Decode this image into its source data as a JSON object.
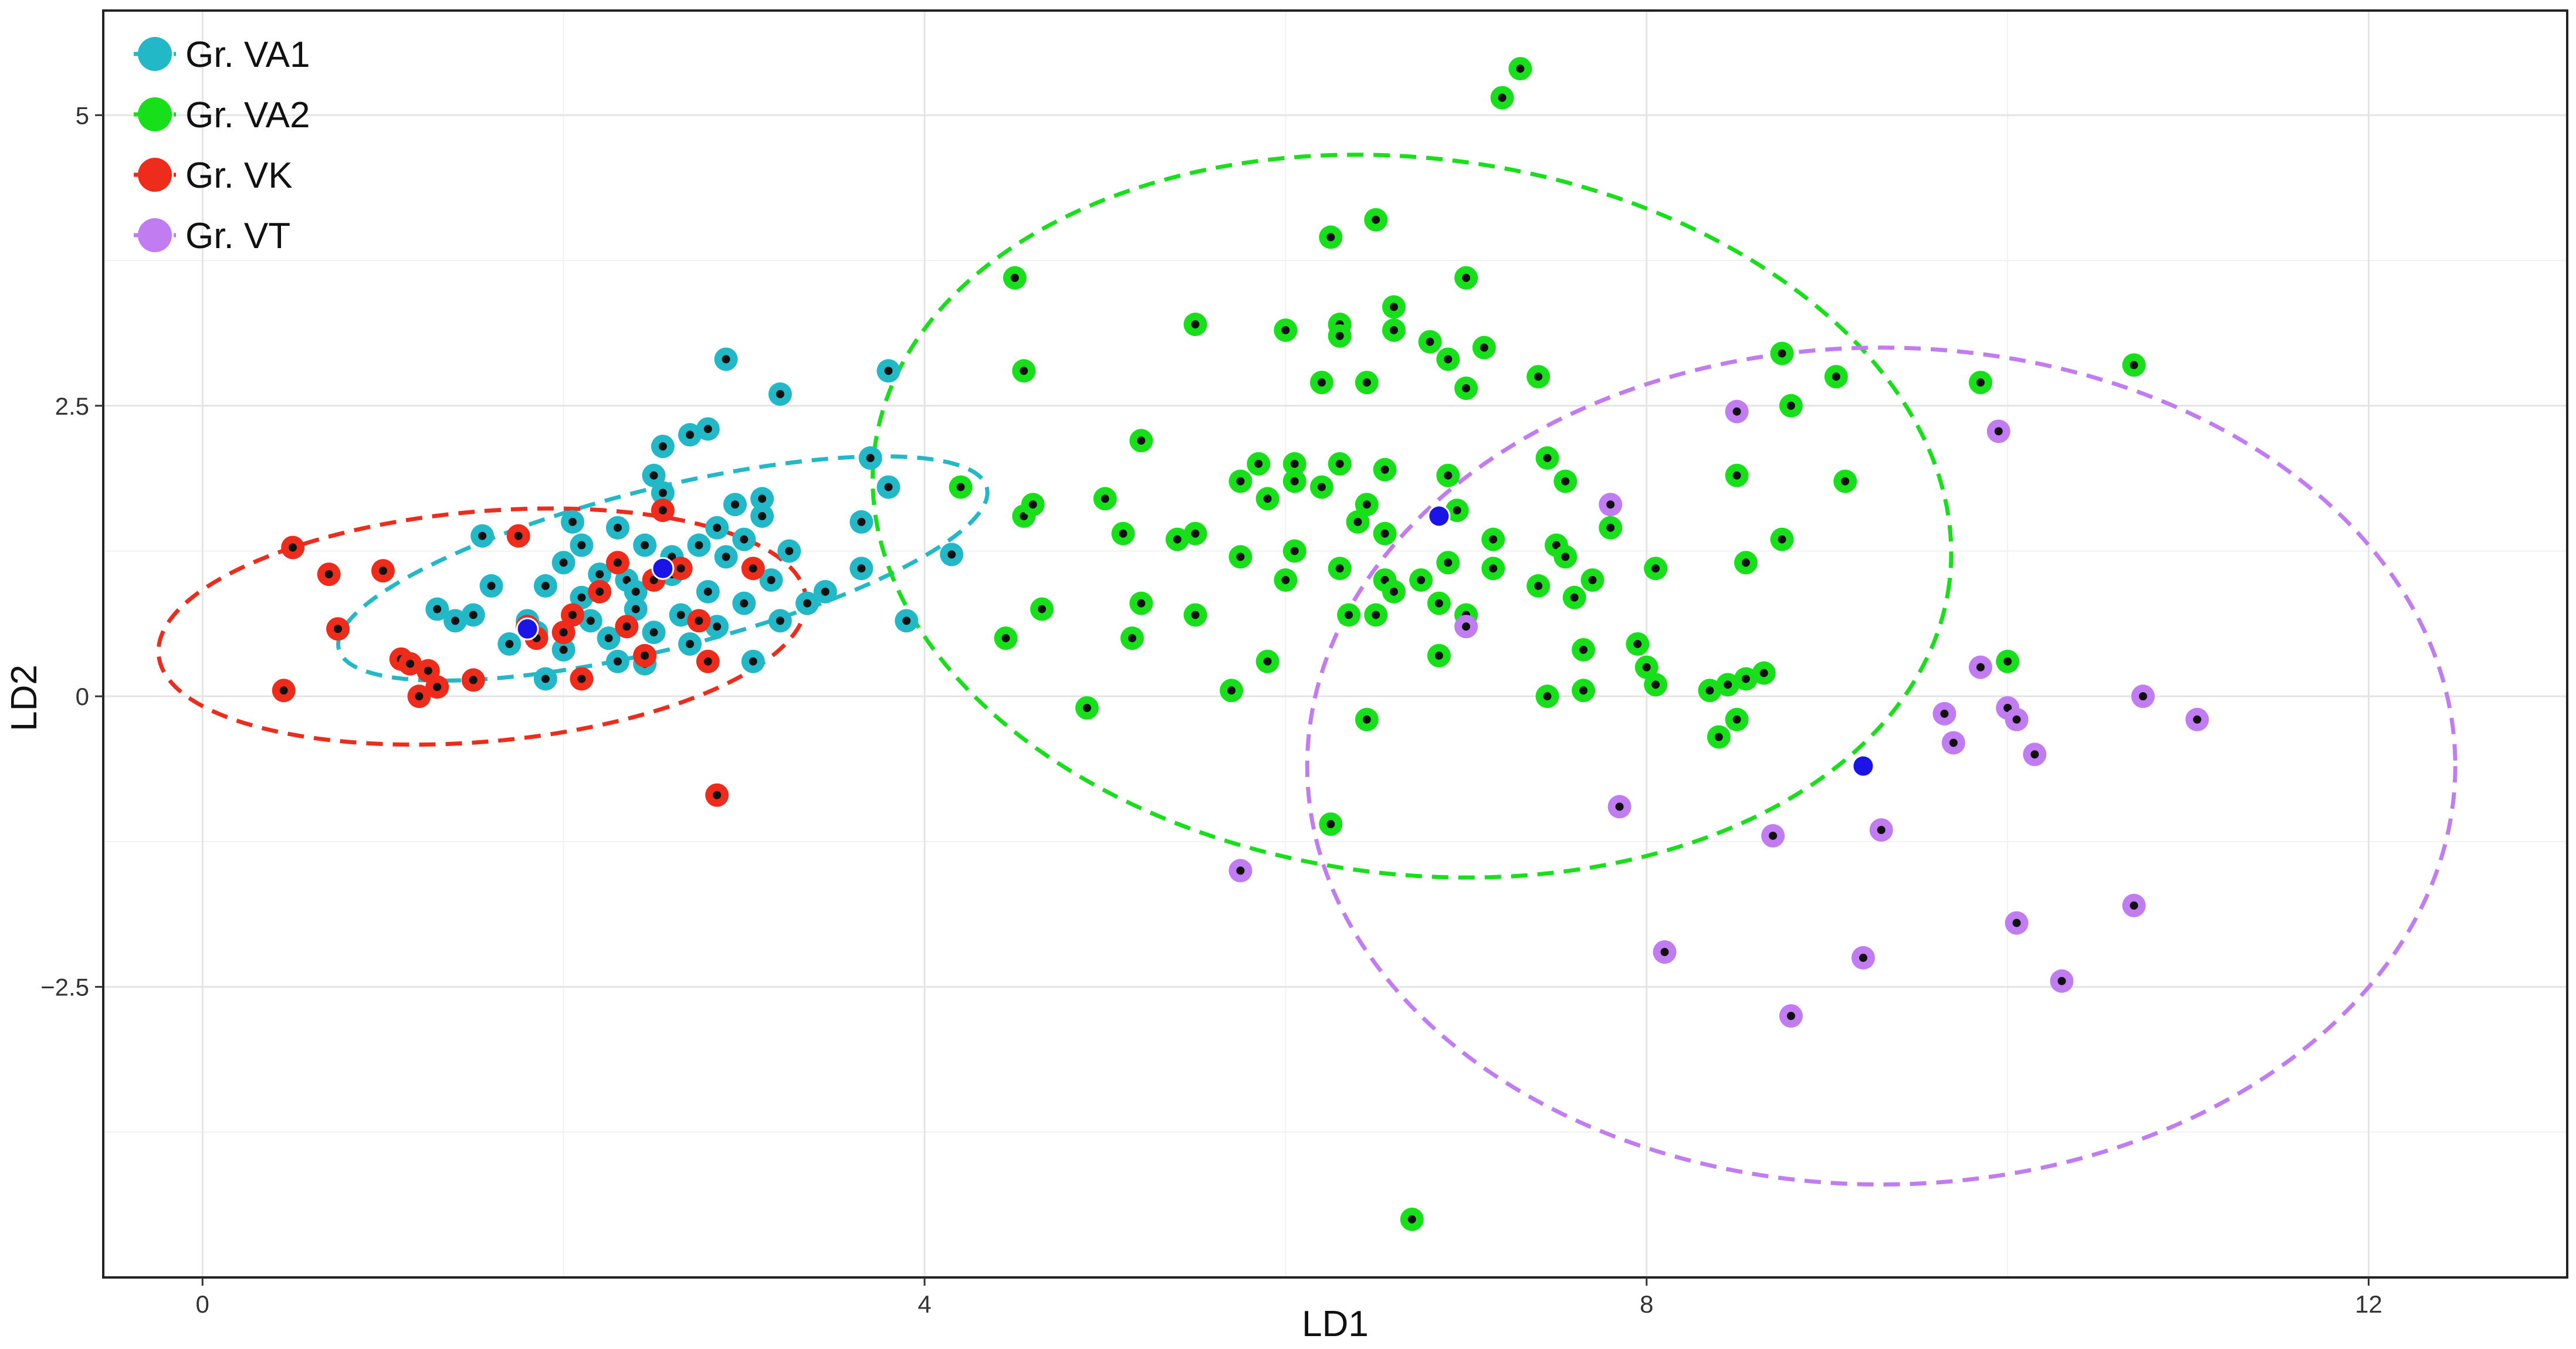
{
  "chart_data": {
    "type": "scatter",
    "title": "",
    "xlabel": "LD1",
    "ylabel": "LD2",
    "xlim": [
      -0.55,
      13.1
    ],
    "ylim": [
      -5.0,
      5.9
    ],
    "xticks": [
      0,
      4,
      8,
      12
    ],
    "xtick_labels": [
      "0",
      "4",
      "8",
      "12"
    ],
    "yticks": [
      5,
      2.5,
      0,
      -2.5
    ],
    "ytick_labels": [
      "5",
      "2.5",
      "0",
      "−2.5"
    ],
    "grid": true,
    "legend_position": "top-left",
    "centroid_color": "#1a14e6",
    "series": [
      {
        "name": "Gr. VA1",
        "color": "#22b8c8",
        "centroid": [
          2.55,
          1.1
        ],
        "ellipse": {
          "cx": 2.55,
          "cy": 1.1,
          "rx": 1.85,
          "ry": 0.69,
          "angle": 14
        },
        "points": [
          [
            2.9,
            2.9
          ],
          [
            3.2,
            2.6
          ],
          [
            3.8,
            2.8
          ],
          [
            3.7,
            2.05
          ],
          [
            3.8,
            1.8
          ],
          [
            3.65,
            1.5
          ],
          [
            3.65,
            1.1
          ],
          [
            3.45,
            0.9
          ],
          [
            3.9,
            0.65
          ],
          [
            4.15,
            1.22
          ],
          [
            1.3,
            0.75
          ],
          [
            1.4,
            0.65
          ],
          [
            1.5,
            0.7
          ],
          [
            1.55,
            1.38
          ],
          [
            1.6,
            0.95
          ],
          [
            1.7,
            0.45
          ],
          [
            1.8,
            0.65
          ],
          [
            1.9,
            0.95
          ],
          [
            1.9,
            0.15
          ],
          [
            2.0,
            1.15
          ],
          [
            2.05,
            1.5
          ],
          [
            2.1,
            0.85
          ],
          [
            2.1,
            1.3
          ],
          [
            2.15,
            0.65
          ],
          [
            2.2,
            1.05
          ],
          [
            2.25,
            0.5
          ],
          [
            2.3,
            1.45
          ],
          [
            2.3,
            0.3
          ],
          [
            2.35,
            1.0
          ],
          [
            2.4,
            0.75
          ],
          [
            2.45,
            1.3
          ],
          [
            2.5,
            0.55
          ],
          [
            2.5,
            1.9
          ],
          [
            2.55,
            1.75
          ],
          [
            2.55,
            2.15
          ],
          [
            2.6,
            1.05
          ],
          [
            2.6,
            1.2
          ],
          [
            2.65,
            0.7
          ],
          [
            2.7,
            2.25
          ],
          [
            2.75,
            1.3
          ],
          [
            2.8,
            0.9
          ],
          [
            2.8,
            2.3
          ],
          [
            2.85,
            1.45
          ],
          [
            2.85,
            0.6
          ],
          [
            2.9,
            1.2
          ],
          [
            2.95,
            1.65
          ],
          [
            3.0,
            0.8
          ],
          [
            3.0,
            1.35
          ],
          [
            3.05,
            0.3
          ],
          [
            3.1,
            1.55
          ],
          [
            3.1,
            1.7
          ],
          [
            3.15,
            1.0
          ],
          [
            3.2,
            0.65
          ],
          [
            3.25,
            1.25
          ],
          [
            2.45,
            0.28
          ],
          [
            2.4,
            0.9
          ],
          [
            3.35,
            0.8
          ],
          [
            1.85,
            0.55
          ],
          [
            2.0,
            0.4
          ],
          [
            2.7,
            0.45
          ]
        ]
      },
      {
        "name": "Gr. VA2",
        "color": "#17e01a",
        "centroid": [
          6.85,
          1.55
        ],
        "ellipse": {
          "cx": 6.7,
          "cy": 1.55,
          "rx": 3.0,
          "ry": 3.08,
          "angle": -7
        },
        "points": [
          [
            7.2,
            5.15
          ],
          [
            7.3,
            5.4
          ],
          [
            6.5,
            4.1
          ],
          [
            6.25,
            3.95
          ],
          [
            4.5,
            3.6
          ],
          [
            7.0,
            3.6
          ],
          [
            5.5,
            3.2
          ],
          [
            6.0,
            3.15
          ],
          [
            6.6,
            3.35
          ],
          [
            6.3,
            3.2
          ],
          [
            6.3,
            3.1
          ],
          [
            6.6,
            3.15
          ],
          [
            6.8,
            3.05
          ],
          [
            7.1,
            3.0
          ],
          [
            6.9,
            2.9
          ],
          [
            8.75,
            2.95
          ],
          [
            10.7,
            2.85
          ],
          [
            4.55,
            2.8
          ],
          [
            6.2,
            2.7
          ],
          [
            6.45,
            2.7
          ],
          [
            7.0,
            2.65
          ],
          [
            7.4,
            2.75
          ],
          [
            9.05,
            2.75
          ],
          [
            9.85,
            2.7
          ],
          [
            8.8,
            2.5
          ],
          [
            5.2,
            2.2
          ],
          [
            7.45,
            2.05
          ],
          [
            4.2,
            1.8
          ],
          [
            5.85,
            2.0
          ],
          [
            6.05,
            2.0
          ],
          [
            6.3,
            2.0
          ],
          [
            6.55,
            1.95
          ],
          [
            6.9,
            1.9
          ],
          [
            7.55,
            1.85
          ],
          [
            8.5,
            1.9
          ],
          [
            9.1,
            1.85
          ],
          [
            4.55,
            1.55
          ],
          [
            4.6,
            1.65
          ],
          [
            5.0,
            1.7
          ],
          [
            5.4,
            1.35
          ],
          [
            5.5,
            1.4
          ],
          [
            5.75,
            1.85
          ],
          [
            5.9,
            1.7
          ],
          [
            6.05,
            1.85
          ],
          [
            6.2,
            1.8
          ],
          [
            6.4,
            1.5
          ],
          [
            6.45,
            1.65
          ],
          [
            6.55,
            1.4
          ],
          [
            6.95,
            1.6
          ],
          [
            7.15,
            1.35
          ],
          [
            7.5,
            1.3
          ],
          [
            7.8,
            1.45
          ],
          [
            8.75,
            1.35
          ],
          [
            5.1,
            1.4
          ],
          [
            5.75,
            1.2
          ],
          [
            6.05,
            1.25
          ],
          [
            6.3,
            1.1
          ],
          [
            6.55,
            1.0
          ],
          [
            6.75,
            1.0
          ],
          [
            6.9,
            1.15
          ],
          [
            7.15,
            1.1
          ],
          [
            7.4,
            0.95
          ],
          [
            7.55,
            1.2
          ],
          [
            7.7,
            1.0
          ],
          [
            8.05,
            1.1
          ],
          [
            8.55,
            1.15
          ],
          [
            5.2,
            0.8
          ],
          [
            5.5,
            0.7
          ],
          [
            6.0,
            1.0
          ],
          [
            6.35,
            0.7
          ],
          [
            6.5,
            0.7
          ],
          [
            6.6,
            0.9
          ],
          [
            6.85,
            0.8
          ],
          [
            7.0,
            0.7
          ],
          [
            7.6,
            0.85
          ],
          [
            4.45,
            0.5
          ],
          [
            4.65,
            0.75
          ],
          [
            5.15,
            0.5
          ],
          [
            5.9,
            0.3
          ],
          [
            6.85,
            0.35
          ],
          [
            7.65,
            0.4
          ],
          [
            7.95,
            0.45
          ],
          [
            8.0,
            0.25
          ],
          [
            8.45,
            0.1
          ],
          [
            8.65,
            0.2
          ],
          [
            10.0,
            0.3
          ],
          [
            5.7,
            0.05
          ],
          [
            7.45,
            0.0
          ],
          [
            7.65,
            0.05
          ],
          [
            8.05,
            0.1
          ],
          [
            8.35,
            0.05
          ],
          [
            8.55,
            0.15
          ],
          [
            4.9,
            -0.1
          ],
          [
            6.45,
            -0.2
          ],
          [
            8.5,
            -0.2
          ],
          [
            8.4,
            -0.35
          ],
          [
            6.25,
            -1.1
          ],
          [
            6.7,
            -4.5
          ]
        ]
      },
      {
        "name": "Gr. VK",
        "color": "#ee2c1c",
        "centroid": [
          1.8,
          0.58
        ],
        "ellipse": {
          "cx": 1.55,
          "cy": 0.6,
          "rx": 1.8,
          "ry": 0.99,
          "angle": 5
        },
        "points": [
          [
            0.5,
            1.28
          ],
          [
            0.7,
            1.05
          ],
          [
            1.0,
            1.08
          ],
          [
            0.75,
            0.58
          ],
          [
            1.1,
            0.32
          ],
          [
            1.15,
            0.28
          ],
          [
            1.25,
            0.22
          ],
          [
            1.3,
            0.08
          ],
          [
            1.2,
            0.0
          ],
          [
            1.5,
            0.14
          ],
          [
            1.75,
            1.38
          ],
          [
            1.8,
            0.6
          ],
          [
            1.85,
            0.5
          ],
          [
            2.0,
            0.55
          ],
          [
            2.05,
            0.7
          ],
          [
            2.1,
            0.15
          ],
          [
            2.3,
            1.15
          ],
          [
            2.5,
            1.0
          ],
          [
            2.55,
            1.6
          ],
          [
            2.65,
            1.1
          ],
          [
            2.2,
            0.9
          ],
          [
            2.35,
            0.6
          ],
          [
            2.75,
            0.65
          ],
          [
            2.8,
            0.3
          ],
          [
            2.85,
            -0.85
          ],
          [
            3.05,
            1.1
          ],
          [
            0.45,
            0.05
          ],
          [
            2.45,
            0.35
          ]
        ]
      },
      {
        "name": "Gr. VT",
        "color": "#c27cf2",
        "centroid": [
          9.2,
          -0.6
        ],
        "ellipse": {
          "cx": 9.3,
          "cy": -0.6,
          "rx": 3.18,
          "ry": 3.6,
          "angle": 0
        },
        "points": [
          [
            8.5,
            2.45
          ],
          [
            9.95,
            2.28
          ],
          [
            7.8,
            1.65
          ],
          [
            7.0,
            0.6
          ],
          [
            9.85,
            0.25
          ],
          [
            9.65,
            -0.15
          ],
          [
            9.7,
            -0.4
          ],
          [
            10.0,
            -0.1
          ],
          [
            10.05,
            -0.2
          ],
          [
            10.15,
            -0.5
          ],
          [
            10.75,
            0.0
          ],
          [
            11.05,
            -0.2
          ],
          [
            7.85,
            -0.95
          ],
          [
            8.7,
            -1.2
          ],
          [
            9.3,
            -1.15
          ],
          [
            5.75,
            -1.5
          ],
          [
            10.7,
            -1.8
          ],
          [
            10.05,
            -1.95
          ],
          [
            8.1,
            -2.2
          ],
          [
            9.2,
            -2.25
          ],
          [
            10.3,
            -2.45
          ],
          [
            8.8,
            -2.75
          ]
        ]
      }
    ]
  }
}
